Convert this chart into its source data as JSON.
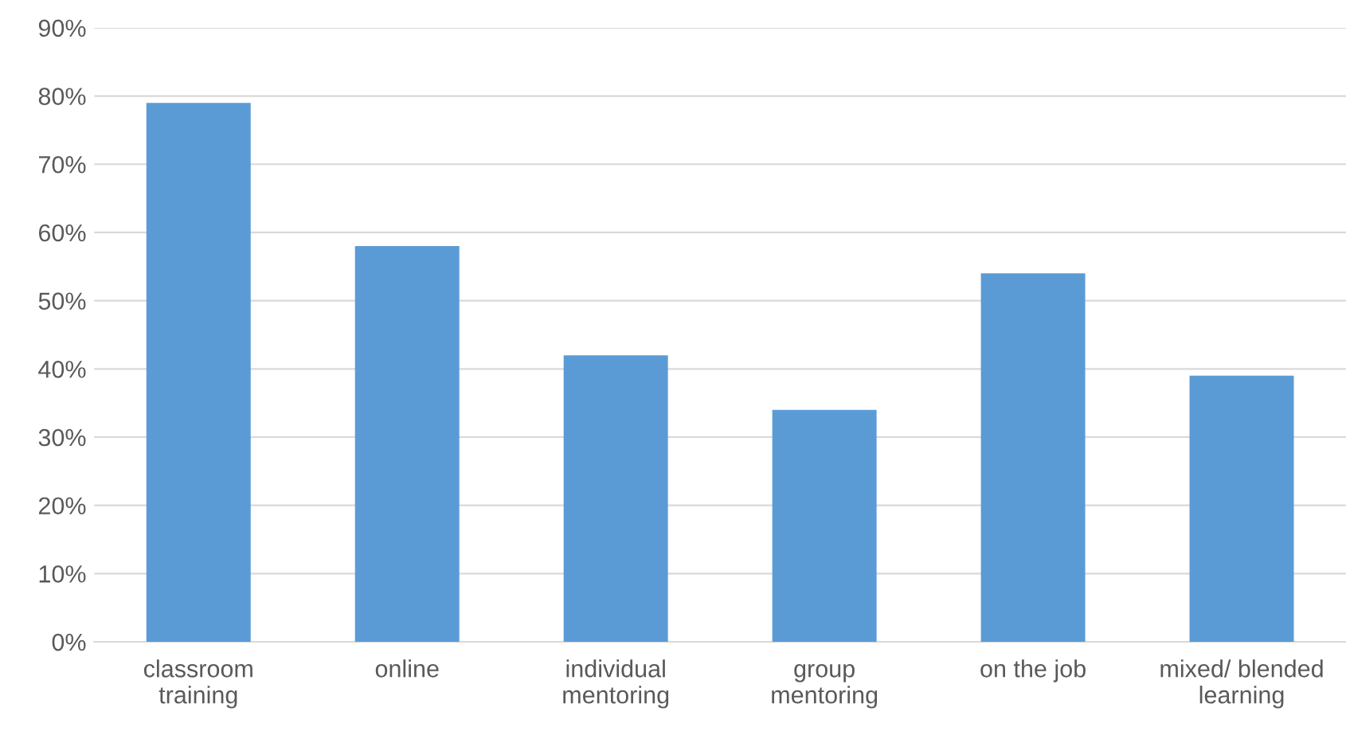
{
  "chart_data": {
    "type": "bar",
    "categories": [
      "classroom\ntraining",
      "online",
      "individual\nmentoring",
      "group\nmentoring",
      "on the job",
      "mixed/ blended\nlearning"
    ],
    "values": [
      79,
      58,
      42,
      34,
      54,
      39
    ],
    "color": "#5b9bd5",
    "ylim": [
      0,
      90
    ],
    "yticks": [
      {
        "value": 0,
        "label": "0%"
      },
      {
        "value": 10,
        "label": "10%"
      },
      {
        "value": 20,
        "label": "20%"
      },
      {
        "value": 30,
        "label": "30%"
      },
      {
        "value": 40,
        "label": "40%"
      },
      {
        "value": 50,
        "label": "50%"
      },
      {
        "value": 60,
        "label": "60%"
      },
      {
        "value": 70,
        "label": "70%"
      },
      {
        "value": 80,
        "label": "80%"
      },
      {
        "value": 90,
        "label": "90%"
      }
    ],
    "grid": "y"
  }
}
